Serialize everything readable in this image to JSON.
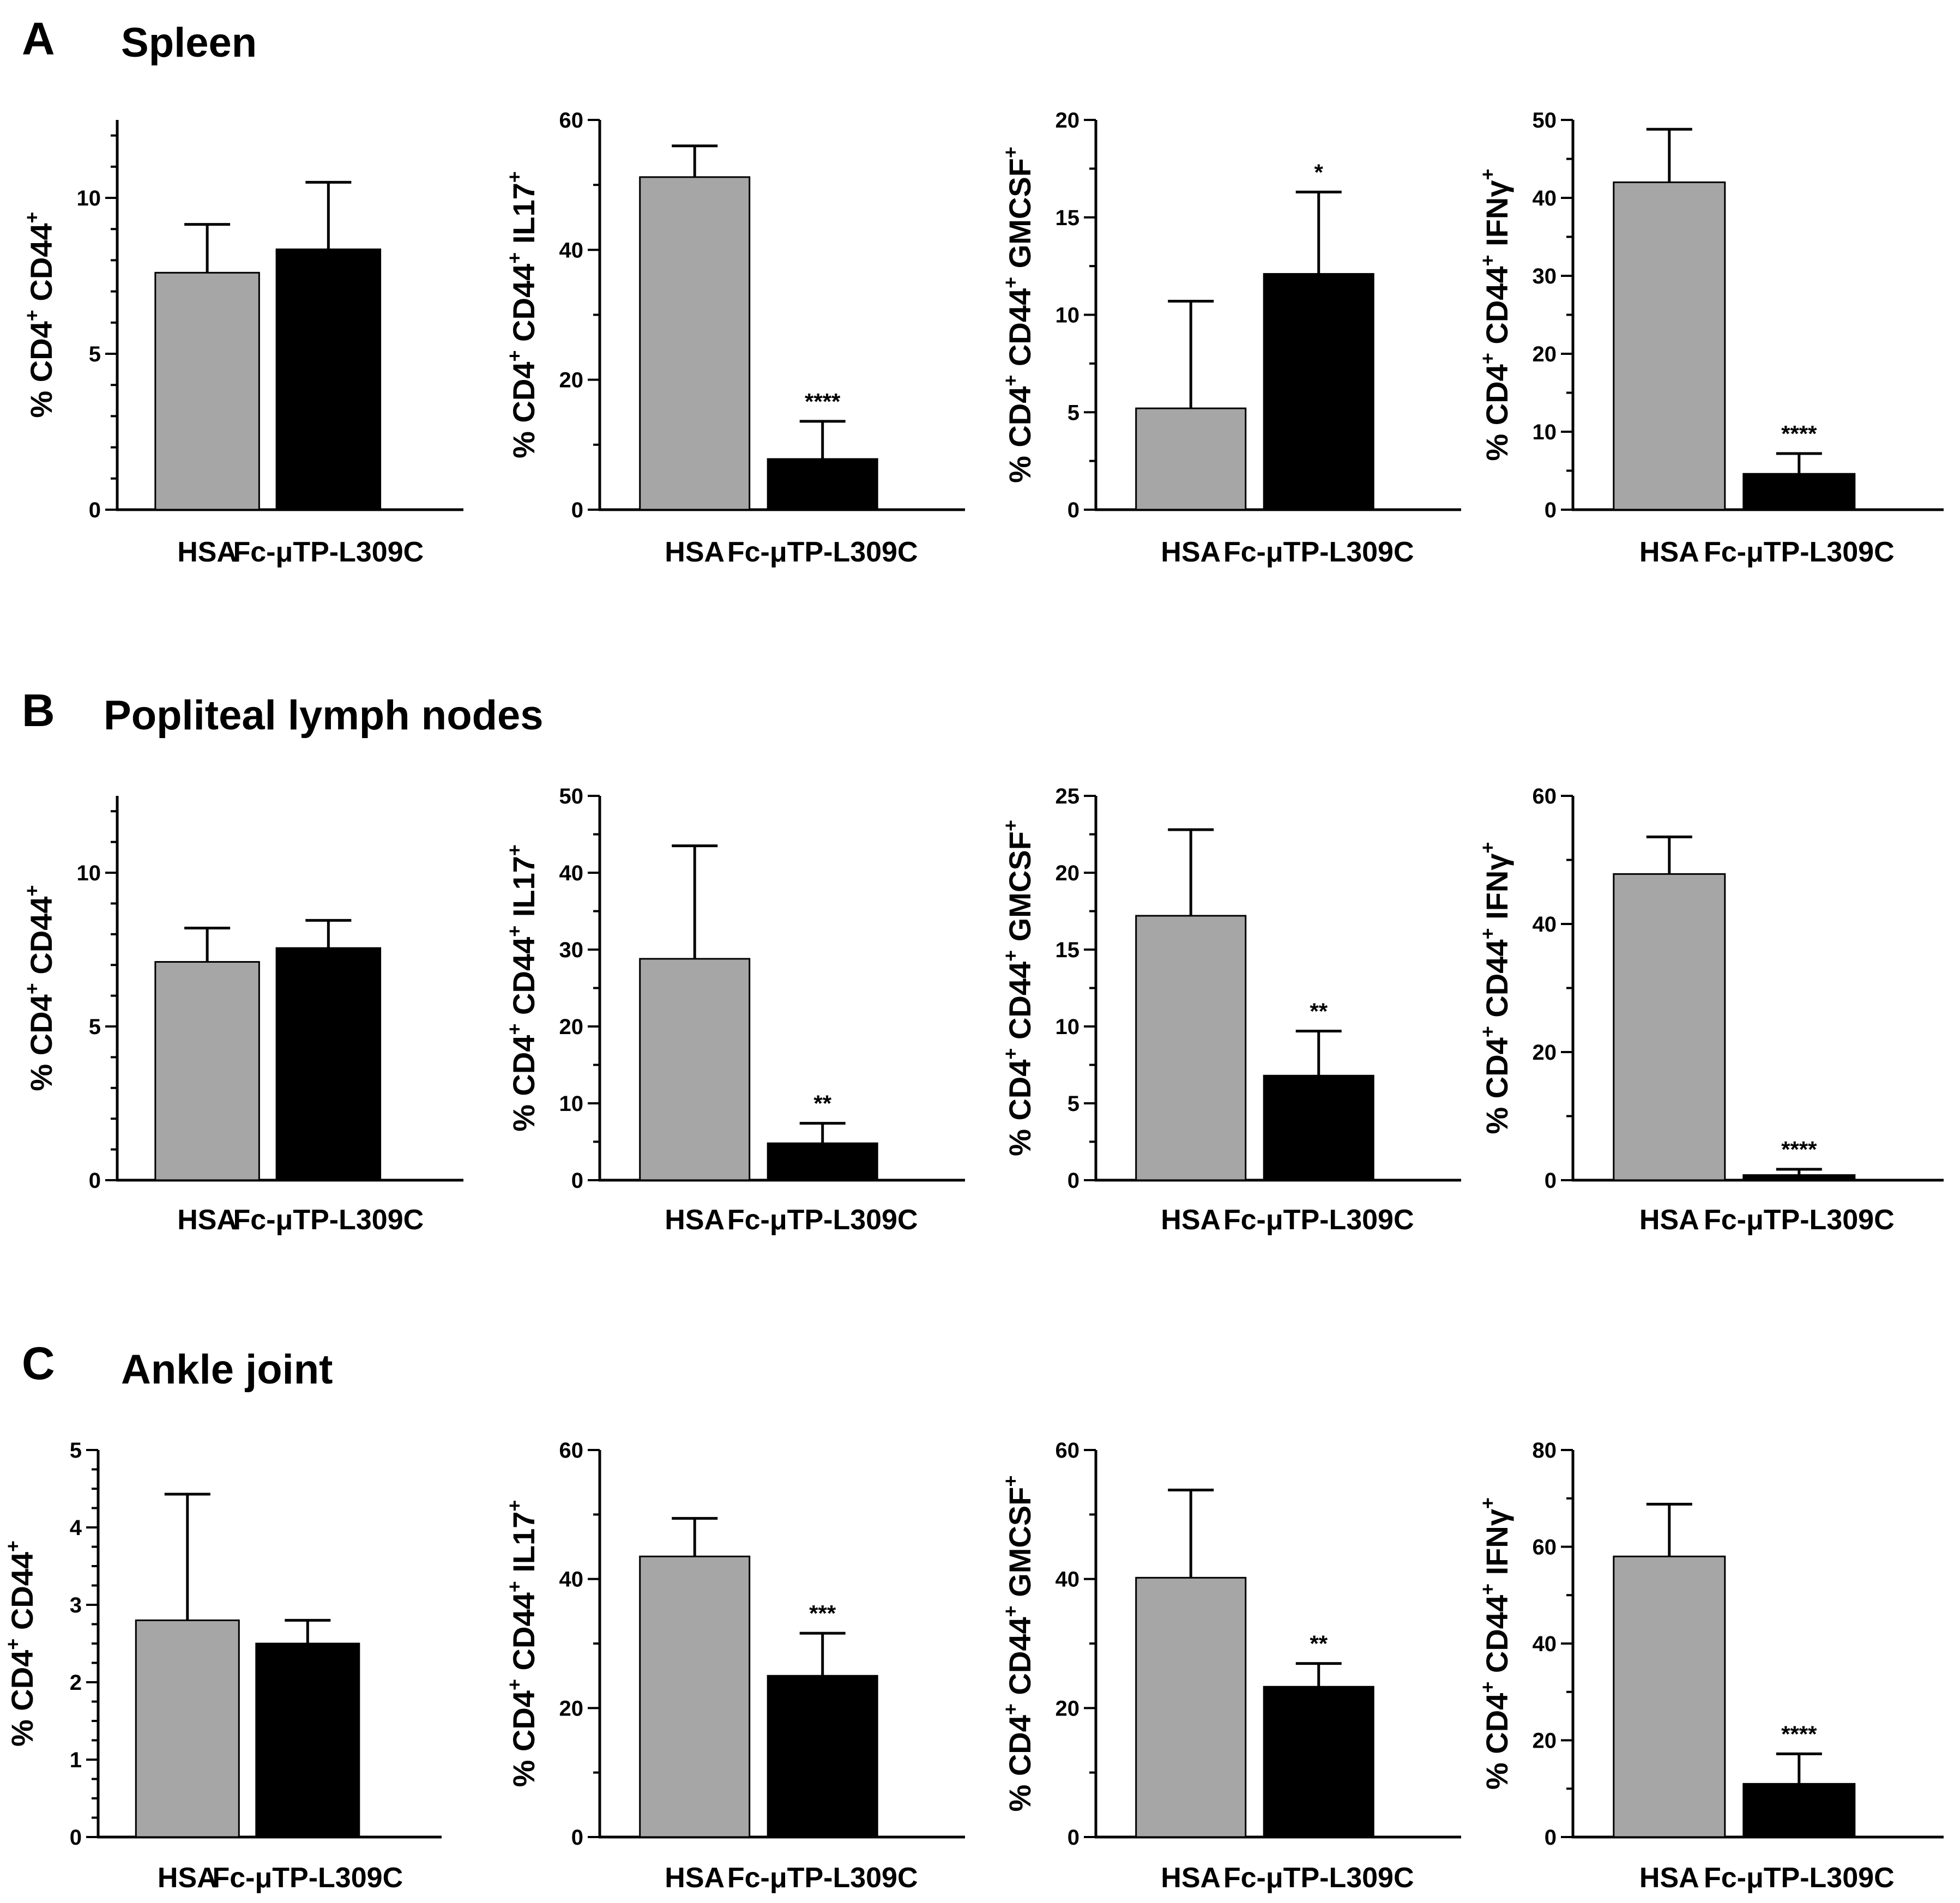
{
  "colors": {
    "bar_hsa": "#a6a6a6",
    "bar_treated": "#000000",
    "outline": "#000000"
  },
  "panels": [
    {
      "letter": "A",
      "title": "Spleen"
    },
    {
      "letter": "B",
      "title": "Popliteal lymph nodes"
    },
    {
      "letter": "C",
      "title": "Ankle joint"
    }
  ],
  "chart_data": [
    {
      "type": "bar",
      "panel": "A",
      "ylabel_main": "% CD4",
      "ylabel_parts": [
        "% CD4",
        "+",
        " CD44",
        "+"
      ],
      "ylim": [
        0,
        12.5
      ],
      "ticks": [
        0,
        5,
        10
      ],
      "tick_labels": [
        "0",
        "5",
        "10"
      ],
      "minor_step": 1,
      "categories": [
        "HSA",
        "Fc-μTP-L309C"
      ],
      "values": [
        7.6,
        8.35
      ],
      "errors": [
        1.55,
        2.15
      ],
      "significance": [
        "",
        ""
      ]
    },
    {
      "type": "bar",
      "panel": "A",
      "ylabel_parts": [
        "% CD4",
        "+",
        " CD44",
        "+",
        " IL17",
        "+"
      ],
      "ylim": [
        0,
        60
      ],
      "ticks": [
        0,
        20,
        40,
        60
      ],
      "tick_labels": [
        "0",
        "20",
        "40",
        "60"
      ],
      "minor_step": 10,
      "categories": [
        "HSA",
        "Fc-μTP-L309C"
      ],
      "values": [
        51.2,
        7.8
      ],
      "errors": [
        4.8,
        5.8
      ],
      "significance": [
        "",
        "****"
      ]
    },
    {
      "type": "bar",
      "panel": "A",
      "ylabel_parts": [
        "% CD4",
        "+",
        " CD44",
        "+",
        " GMCSF",
        "+"
      ],
      "ylim": [
        0,
        20
      ],
      "ticks": [
        0,
        5,
        10,
        15,
        20
      ],
      "tick_labels": [
        "0",
        "5",
        "10",
        "15",
        "20"
      ],
      "minor_step": 2.5,
      "categories": [
        "HSA",
        "Fc-μTP-L309C"
      ],
      "values": [
        5.2,
        12.1
      ],
      "errors": [
        5.5,
        4.2
      ],
      "significance": [
        "",
        "*"
      ]
    },
    {
      "type": "bar",
      "panel": "A",
      "ylabel_parts": [
        "% CD4",
        "+",
        " CD44",
        "+",
        " IFNγ",
        "+"
      ],
      "ylim": [
        0,
        50
      ],
      "ticks": [
        0,
        10,
        20,
        30,
        40,
        50
      ],
      "tick_labels": [
        "0",
        "10",
        "20",
        "30",
        "40",
        "50"
      ],
      "minor_step": 5,
      "categories": [
        "HSA",
        "Fc-μTP-L309C"
      ],
      "values": [
        42.0,
        4.6
      ],
      "errors": [
        6.8,
        2.6
      ],
      "significance": [
        "",
        "****"
      ]
    },
    {
      "type": "bar",
      "panel": "B",
      "ylabel_parts": [
        "% CD4",
        "+",
        " CD44",
        "+"
      ],
      "ylim": [
        0,
        12.5
      ],
      "ticks": [
        0,
        5,
        10
      ],
      "tick_labels": [
        "0",
        "5",
        "10"
      ],
      "minor_step": 1,
      "categories": [
        "HSA",
        "Fc-μTP-L309C"
      ],
      "values": [
        7.1,
        7.55
      ],
      "errors": [
        1.1,
        0.9
      ],
      "significance": [
        "",
        ""
      ]
    },
    {
      "type": "bar",
      "panel": "B",
      "ylabel_parts": [
        "% CD4",
        "+",
        " CD44",
        "+",
        " IL17",
        "+"
      ],
      "ylim": [
        0,
        50
      ],
      "ticks": [
        0,
        10,
        20,
        30,
        40,
        50
      ],
      "tick_labels": [
        "0",
        "10",
        "20",
        "30",
        "40",
        "50"
      ],
      "minor_step": 5,
      "categories": [
        "HSA",
        "Fc-μTP-L309C"
      ],
      "values": [
        28.8,
        4.8
      ],
      "errors": [
        14.7,
        2.6
      ],
      "significance": [
        "",
        "**"
      ]
    },
    {
      "type": "bar",
      "panel": "B",
      "ylabel_parts": [
        "% CD4",
        "+",
        " CD44",
        "+",
        " GMCSF",
        "+"
      ],
      "ylim": [
        0,
        25
      ],
      "ticks": [
        0,
        5,
        10,
        15,
        20,
        25
      ],
      "tick_labels": [
        "0",
        "5",
        "10",
        "15",
        "20",
        "25"
      ],
      "minor_step": 2.5,
      "categories": [
        "HSA",
        "Fc-μTP-L309C"
      ],
      "values": [
        17.2,
        6.8
      ],
      "errors": [
        5.6,
        2.9
      ],
      "significance": [
        "",
        "**"
      ]
    },
    {
      "type": "bar",
      "panel": "B",
      "ylabel_parts": [
        "% CD4",
        "+",
        " CD44",
        "+",
        " IFNγ",
        "+"
      ],
      "ylim": [
        0,
        60
      ],
      "ticks": [
        0,
        20,
        40,
        60
      ],
      "tick_labels": [
        "0",
        "20",
        "40",
        "60"
      ],
      "minor_step": 10,
      "categories": [
        "HSA",
        "Fc-μTP-L309C"
      ],
      "values": [
        47.8,
        0.8
      ],
      "errors": [
        5.8,
        0.9
      ],
      "significance": [
        "",
        "****"
      ]
    },
    {
      "type": "bar",
      "panel": "C",
      "ylabel_parts": [
        "% CD4",
        "+",
        " CD44",
        "+"
      ],
      "ylim": [
        0,
        5
      ],
      "ticks": [
        0,
        1,
        2,
        3,
        4,
        5
      ],
      "tick_labels": [
        "0",
        "1",
        "2",
        "3",
        "4",
        "5"
      ],
      "minor_step": 0.25,
      "categories": [
        "HSA",
        "Fc-μTP-L309C"
      ],
      "values": [
        2.8,
        2.5
      ],
      "errors": [
        1.63,
        0.3
      ],
      "significance": [
        "",
        ""
      ]
    },
    {
      "type": "bar",
      "panel": "C",
      "ylabel_parts": [
        "% CD4",
        "+",
        " CD44",
        "+",
        " IL17",
        "+"
      ],
      "ylim": [
        0,
        60
      ],
      "ticks": [
        0,
        20,
        40,
        60
      ],
      "tick_labels": [
        "0",
        "20",
        "40",
        "60"
      ],
      "minor_step": 10,
      "categories": [
        "HSA",
        "Fc-μTP-L309C"
      ],
      "values": [
        43.5,
        25.0
      ],
      "errors": [
        5.9,
        6.6
      ],
      "significance": [
        "",
        "***"
      ]
    },
    {
      "type": "bar",
      "panel": "C",
      "ylabel_parts": [
        "% CD4",
        "+",
        " CD44",
        "+",
        " GMCSF",
        "+"
      ],
      "ylim": [
        0,
        60
      ],
      "ticks": [
        0,
        20,
        40,
        60
      ],
      "tick_labels": [
        "0",
        "20",
        "40",
        "60"
      ],
      "minor_step": 10,
      "categories": [
        "HSA",
        "Fc-μTP-L309C"
      ],
      "values": [
        40.2,
        23.3
      ],
      "errors": [
        13.6,
        3.6
      ],
      "significance": [
        "",
        "**"
      ]
    },
    {
      "type": "bar",
      "panel": "C",
      "ylabel_parts": [
        "% CD4",
        "+",
        " CD44",
        "+",
        " IFNγ",
        "+"
      ],
      "ylim": [
        0,
        80
      ],
      "ticks": [
        0,
        20,
        40,
        60,
        80
      ],
      "tick_labels": [
        "0",
        "20",
        "40",
        "60",
        "80"
      ],
      "minor_step": 10,
      "categories": [
        "HSA",
        "Fc-μTP-L309C"
      ],
      "values": [
        58.0,
        11.0
      ],
      "errors": [
        10.8,
        6.2
      ],
      "significance": [
        "",
        "****"
      ]
    }
  ]
}
